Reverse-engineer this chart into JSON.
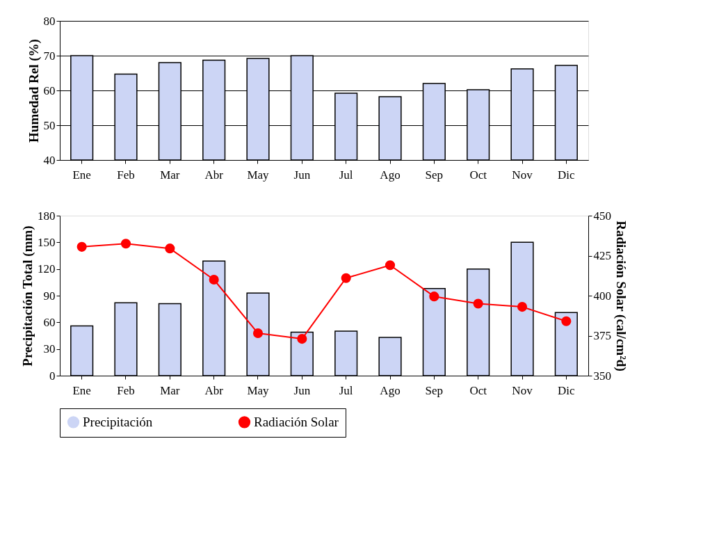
{
  "chart_data": [
    {
      "type": "bar",
      "ylabel": "Humedad Rel (%)",
      "categories": [
        "Ene",
        "Feb",
        "Mar",
        "Abr",
        "May",
        "Jun",
        "Jul",
        "Ago",
        "Sep",
        "Oct",
        "Nov",
        "Dic"
      ],
      "series": [
        {
          "color": "#ccd5f5",
          "values": [
            70,
            64.7,
            68,
            68.7,
            69.2,
            70,
            59.2,
            58.2,
            62,
            60.2,
            66.2,
            67.2
          ]
        }
      ],
      "ylim": [
        40,
        80
      ],
      "yticks": [
        40,
        50,
        60,
        70,
        80
      ],
      "grid": "y"
    },
    {
      "type": "bar",
      "ylabel": "Precipitación Total (mm)",
      "y2label": "Radiación Solar (cal/cm²d)",
      "categories": [
        "Ene",
        "Feb",
        "Mar",
        "Abr",
        "May",
        "Jun",
        "Jul",
        "Ago",
        "Sep",
        "Oct",
        "Nov",
        "Dic"
      ],
      "series": [
        {
          "name": "Precipitación",
          "type": "bar",
          "color": "#ccd5f5",
          "values": [
            56,
            82,
            81,
            129,
            93,
            49,
            50,
            43,
            98,
            120,
            150,
            71
          ]
        },
        {
          "name": "Radiación Solar",
          "type": "line",
          "axis": "y2",
          "color": "#ff0000",
          "marker": "circle",
          "values": [
            430.5,
            432.5,
            429.5,
            410,
            376.5,
            373,
            411,
            419,
            399.5,
            395,
            393,
            384
          ]
        }
      ],
      "ylim": [
        0,
        180
      ],
      "yticks": [
        0,
        30,
        60,
        90,
        120,
        150,
        180
      ],
      "y2lim": [
        350,
        450
      ],
      "y2ticks": [
        350,
        375,
        400,
        425,
        450
      ],
      "grid": false,
      "legend": "bottom"
    }
  ]
}
